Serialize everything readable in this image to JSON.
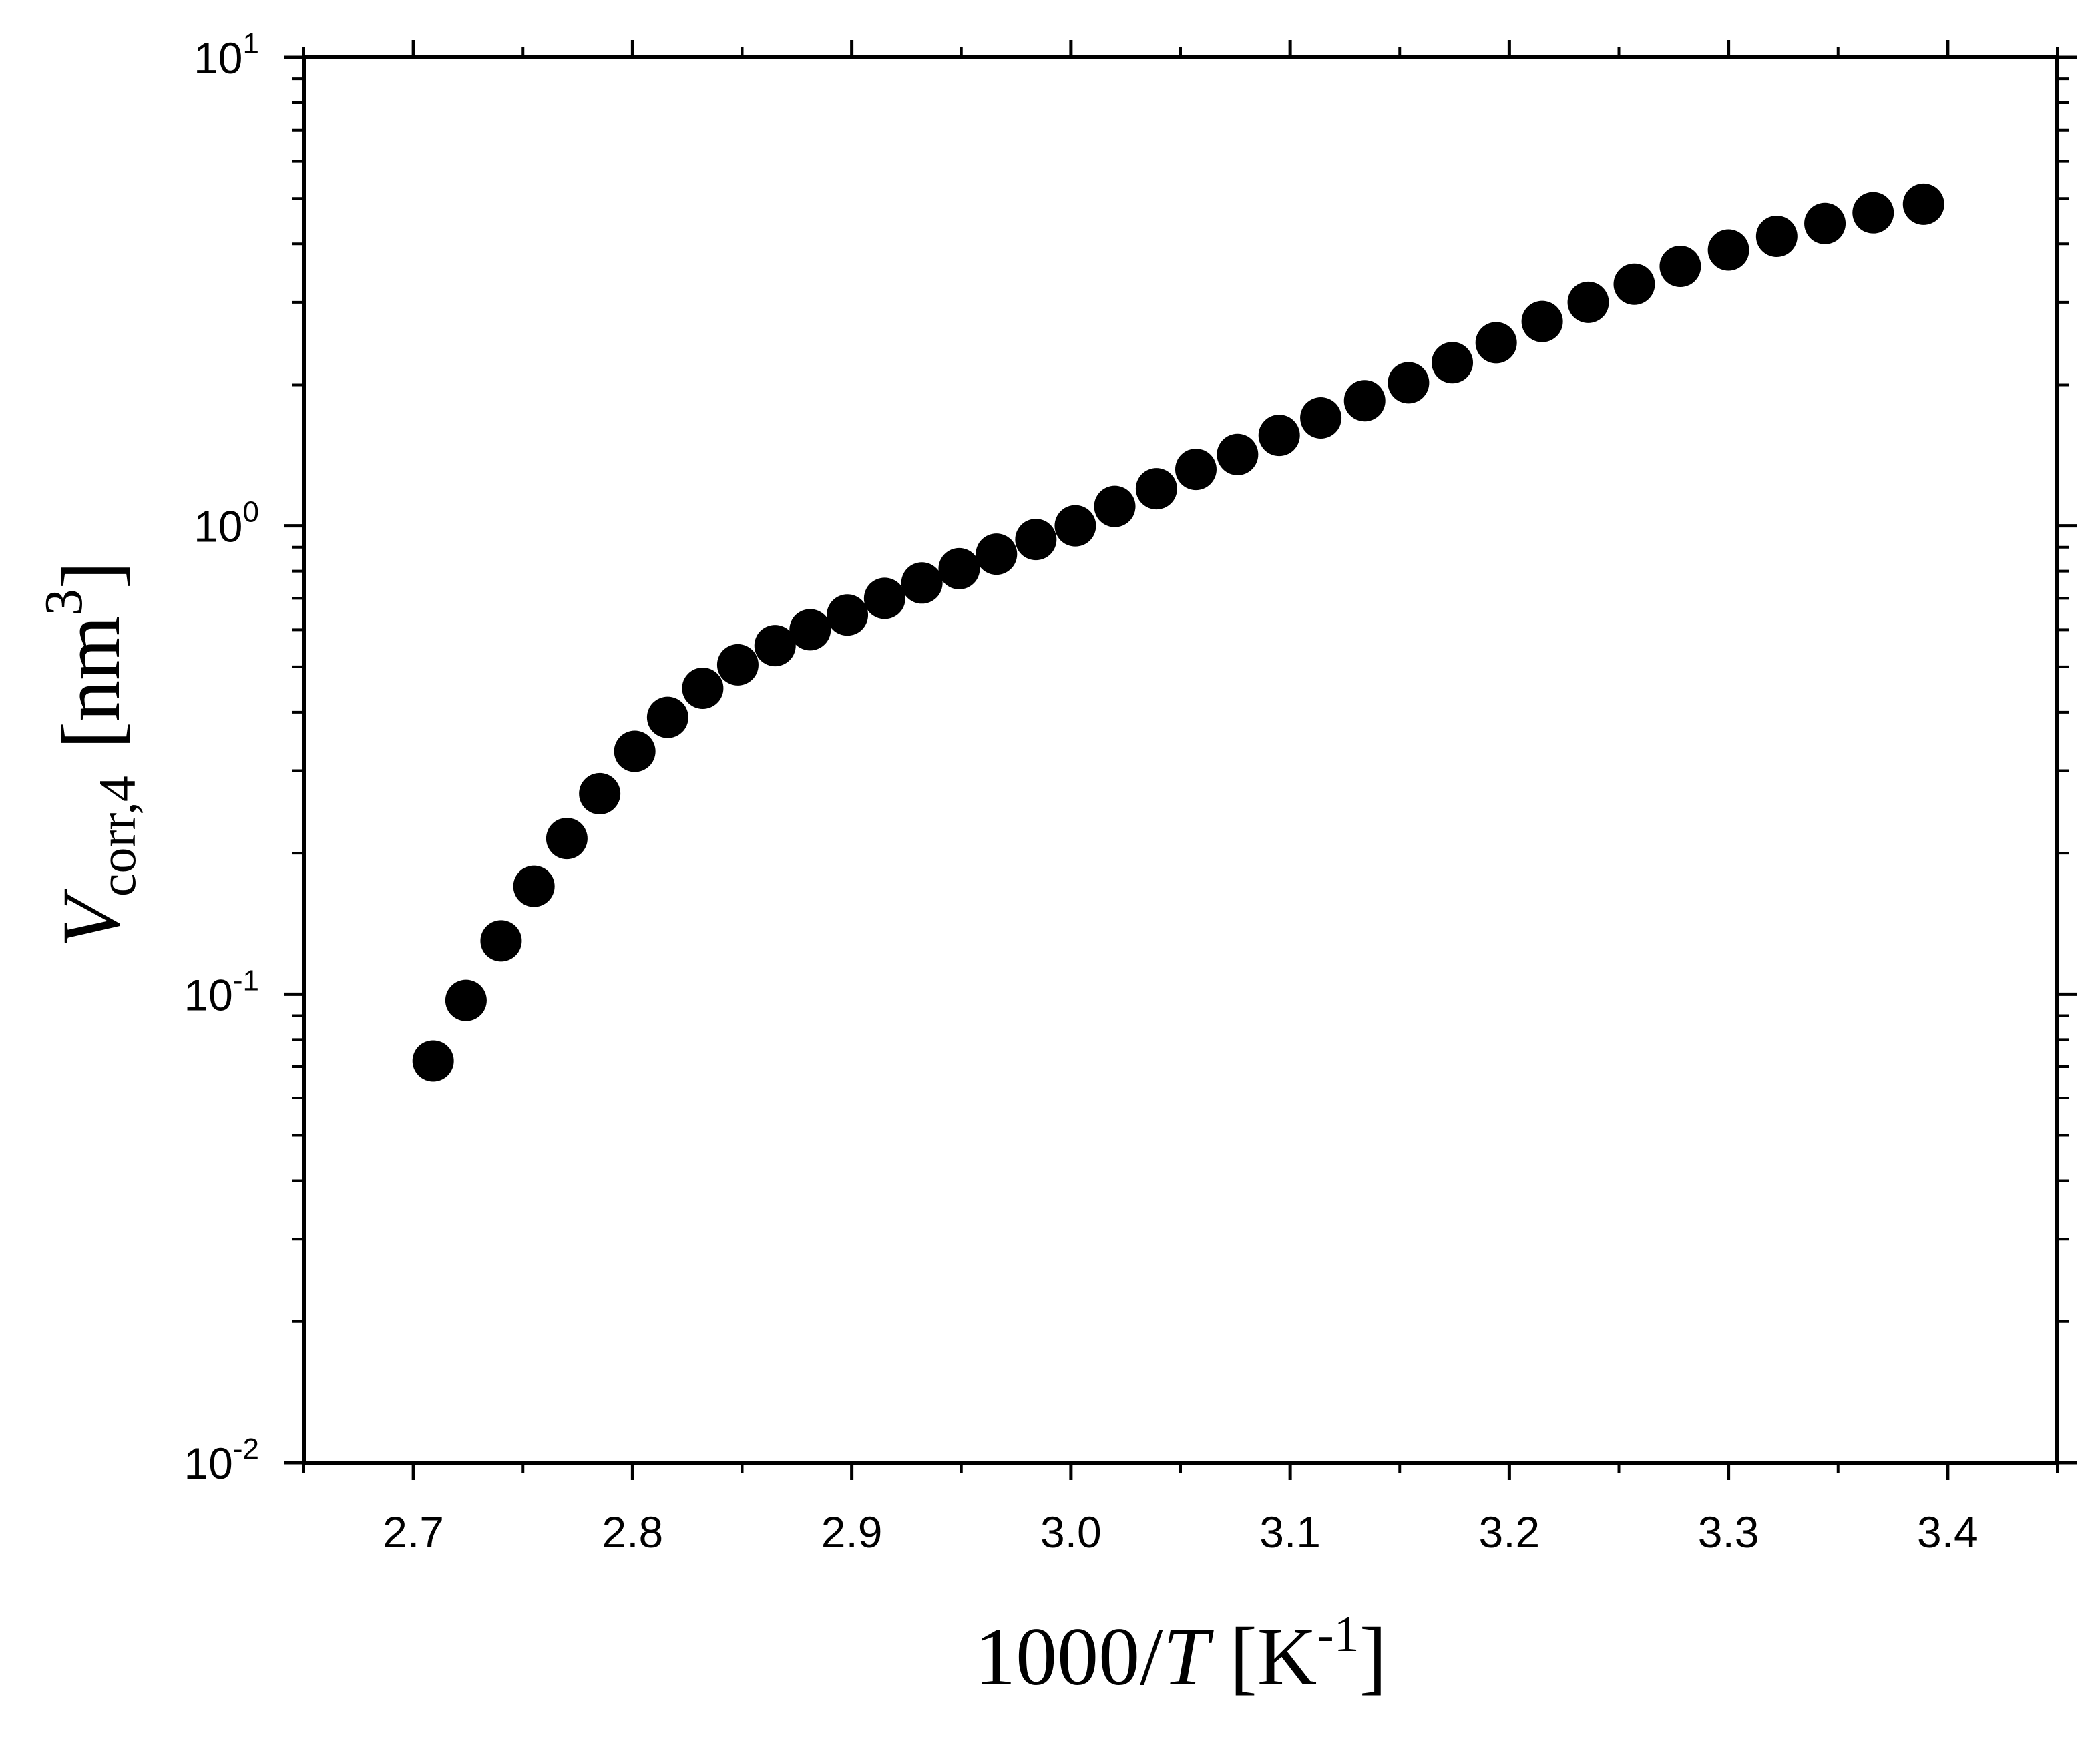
{
  "chart_data": {
    "type": "scatter",
    "title": "",
    "xlabel": {
      "prefix": "1000/",
      "var": "T",
      "unit_open": " [K",
      "unit_exp": "-1",
      "unit_close": "]"
    },
    "ylabel": {
      "var": "V",
      "sub": "corr,4",
      "unit_open": "[nm",
      "unit_exp": "3",
      "unit_close": "]"
    },
    "xlim": [
      2.65,
      3.45
    ],
    "ylim": [
      0.01,
      10
    ],
    "yscale": "log",
    "x_ticks": [
      {
        "value": 2.7,
        "label": "2.7"
      },
      {
        "value": 2.8,
        "label": "2.8"
      },
      {
        "value": 2.9,
        "label": "2.9"
      },
      {
        "value": 3.0,
        "label": "3.0"
      },
      {
        "value": 3.1,
        "label": "3.1"
      },
      {
        "value": 3.2,
        "label": "3.2"
      },
      {
        "value": 3.3,
        "label": "3.3"
      },
      {
        "value": 3.4,
        "label": "3.4"
      }
    ],
    "y_ticks": [
      {
        "value": 10,
        "base": "10",
        "exp": "1"
      },
      {
        "value": 1,
        "base": "10",
        "exp": "0"
      },
      {
        "value": 0.1,
        "base": "10",
        "exp": "-1"
      },
      {
        "value": 0.01,
        "base": "10",
        "exp": "-2"
      }
    ],
    "marker_color": "#000000",
    "series": [
      {
        "name": "V_corr,4",
        "x": [
          2.709,
          2.724,
          2.74,
          2.755,
          2.77,
          2.785,
          2.801,
          2.816,
          2.832,
          2.848,
          2.865,
          2.881,
          2.898,
          2.915,
          2.932,
          2.949,
          2.966,
          2.984,
          3.002,
          3.02,
          3.039,
          3.057,
          3.076,
          3.095,
          3.114,
          3.134,
          3.154,
          3.174,
          3.194,
          3.215,
          3.236,
          3.257,
          3.278,
          3.3,
          3.322,
          3.344,
          3.366,
          3.389
        ],
        "y": [
          0.072,
          0.097,
          0.13,
          0.17,
          0.215,
          0.268,
          0.33,
          0.39,
          0.45,
          0.505,
          0.555,
          0.6,
          0.645,
          0.7,
          0.755,
          0.81,
          0.87,
          0.935,
          1.0,
          1.1,
          1.2,
          1.32,
          1.42,
          1.56,
          1.7,
          1.85,
          2.02,
          2.23,
          2.46,
          2.73,
          3.0,
          3.28,
          3.58,
          3.88,
          4.15,
          4.42,
          4.66,
          4.86
        ]
      }
    ]
  }
}
